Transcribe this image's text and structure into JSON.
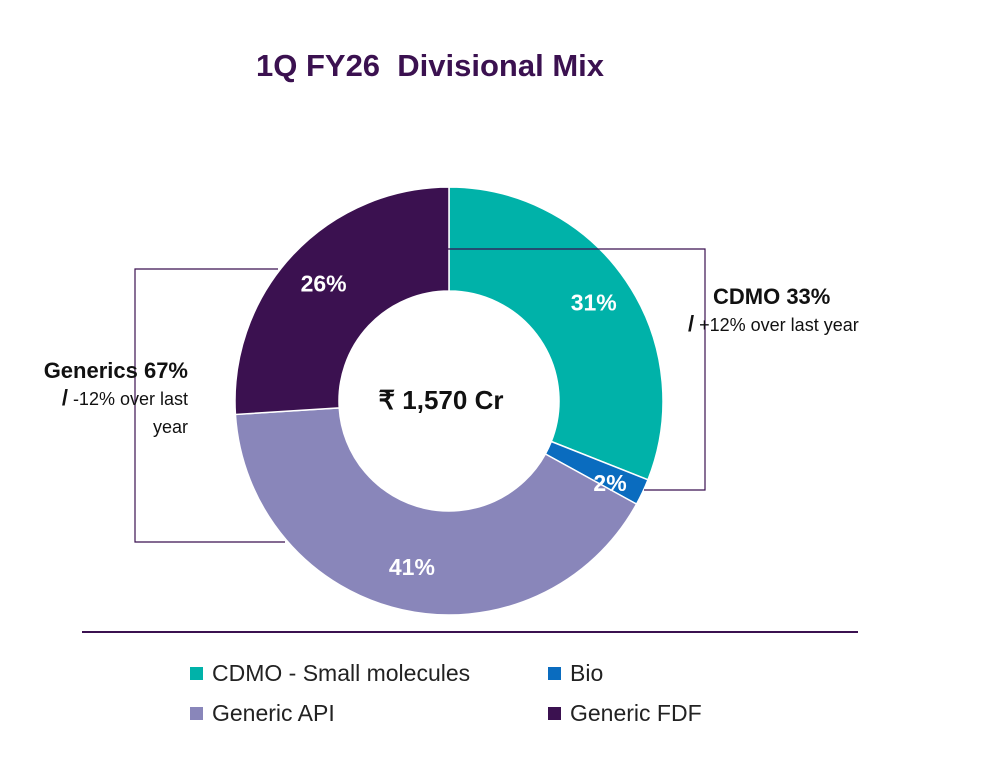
{
  "title": "1Q FY26  Divisional Mix",
  "center_label": "₹ 1,570 Cr",
  "groups": {
    "cdmo": {
      "head": "CDMO 33%",
      "slash": "/",
      "sub": " +12% over last year"
    },
    "generics": {
      "head": "Generics 67%",
      "slash": "/",
      "sub": " -12% over last",
      "sub2": "year"
    }
  },
  "legend": [
    {
      "label": "CDMO - Small molecules",
      "color": "#00b2a9"
    },
    {
      "label": "Bio",
      "color": "#0a6cbf"
    },
    {
      "label": "Generic API",
      "color": "#8986ba"
    },
    {
      "label": "Generic FDF",
      "color": "#3b1150"
    }
  ],
  "chart_data": {
    "type": "pie",
    "style": "donut",
    "title": "1Q FY26  Divisional Mix",
    "center_text": "₹ 1,570 Cr",
    "start": "12 o'clock",
    "direction": "clockwise",
    "categories": [
      "CDMO - Small molecules",
      "Bio",
      "Generic API",
      "Generic FDF"
    ],
    "values": [
      31,
      2,
      41,
      26
    ],
    "labels": [
      "31%",
      "2%",
      "41%",
      "26%"
    ],
    "colors": [
      "#00b2a9",
      "#0a6cbf",
      "#8986ba",
      "#3b1150"
    ],
    "groups": [
      {
        "name": "CDMO",
        "share": "33%",
        "change": "+12% over last year",
        "members": [
          "CDMO - Small molecules",
          "Bio"
        ]
      },
      {
        "name": "Generics",
        "share": "67%",
        "change": "-12% over last year",
        "members": [
          "Generic API",
          "Generic FDF"
        ]
      }
    ]
  }
}
